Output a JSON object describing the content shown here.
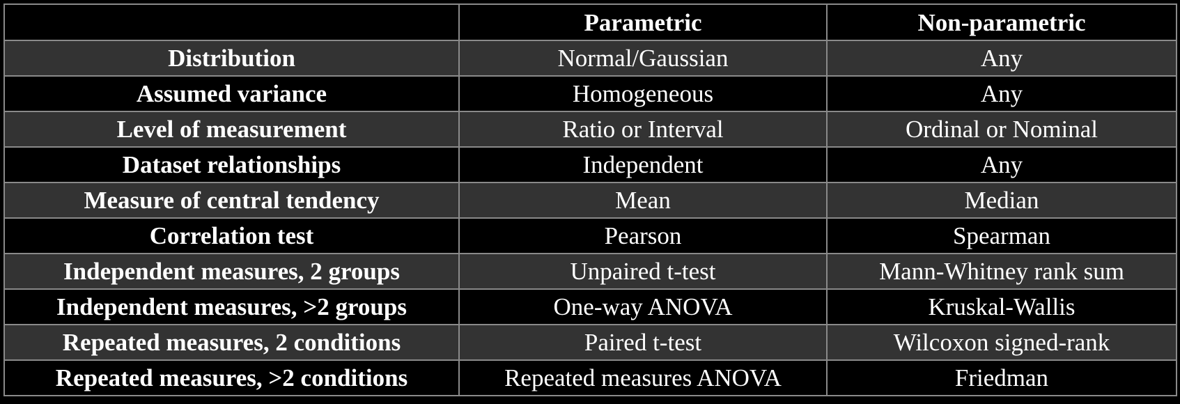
{
  "table": {
    "columns": [
      "Parametric",
      "Non-parametric"
    ],
    "rows": [
      [
        "Distribution",
        "Normal/Gaussian",
        "Any"
      ],
      [
        "Assumed variance",
        "Homogeneous",
        "Any"
      ],
      [
        "Level of measurement",
        "Ratio or Interval",
        "Ordinal or Nominal"
      ],
      [
        "Dataset relationships",
        "Independent",
        "Any"
      ],
      [
        "Measure of central tendency",
        "Mean",
        "Median"
      ],
      [
        "Correlation test",
        "Pearson",
        "Spearman"
      ],
      [
        "Independent measures, 2 groups",
        "Unpaired t-test",
        "Mann-Whitney rank sum"
      ],
      [
        "Independent measures, >2 groups",
        "One-way ANOVA",
        "Kruskal-Wallis"
      ],
      [
        "Repeated measures, 2 conditions",
        "Paired t-test",
        "Wilcoxon signed-rank"
      ],
      [
        "Repeated measures, >2 conditions",
        "Repeated measures ANOVA",
        "Friedman"
      ]
    ]
  }
}
